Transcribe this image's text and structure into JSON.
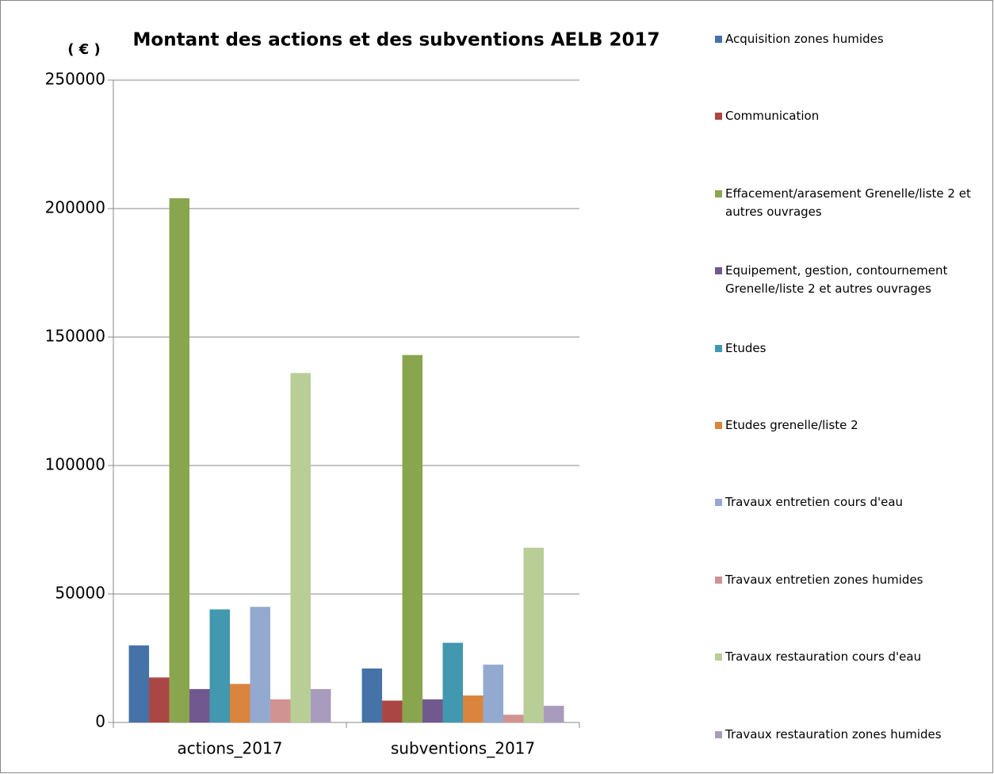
{
  "chart_data": {
    "type": "bar",
    "title": "Montant des actions et des subventions AELB 2017",
    "y_label": "( € )",
    "categories": [
      "actions_2017",
      "subventions_2017"
    ],
    "ylim": [
      0,
      250000
    ],
    "yticks": [
      0,
      50000,
      100000,
      150000,
      200000,
      250000
    ],
    "grid": true,
    "legend": "right",
    "series": [
      {
        "name": "Acquisition zones humides",
        "color": "#4572a7",
        "values": [
          30000,
          21000
        ]
      },
      {
        "name": "Communication",
        "color": "#aa4643",
        "values": [
          17500,
          8500
        ]
      },
      {
        "name": "Effacement/arasement Grenelle/liste 2 et autres ouvrages",
        "color": "#89a54e",
        "values": [
          204000,
          143000
        ]
      },
      {
        "name": "Equipement, gestion, contournement Grenelle/liste 2 et autres ouvrages",
        "color": "#71588f",
        "values": [
          13000,
          9000
        ]
      },
      {
        "name": "Etudes",
        "color": "#4198af",
        "values": [
          44000,
          31000
        ]
      },
      {
        "name": "Etudes grenelle/liste 2",
        "color": "#db843d",
        "values": [
          15000,
          10500
        ]
      },
      {
        "name": "Travaux entretien cours d'eau",
        "color": "#93a9cf",
        "values": [
          45000,
          22500
        ]
      },
      {
        "name": "Travaux entretien zones humides",
        "color": "#d19392",
        "values": [
          9000,
          3000
        ]
      },
      {
        "name": "Travaux restauration cours d'eau",
        "color": "#b9cd96",
        "values": [
          136000,
          68000
        ]
      },
      {
        "name": "Travaux restauration zones humides",
        "color": "#a99bbd",
        "values": [
          13000,
          6500
        ]
      }
    ]
  }
}
